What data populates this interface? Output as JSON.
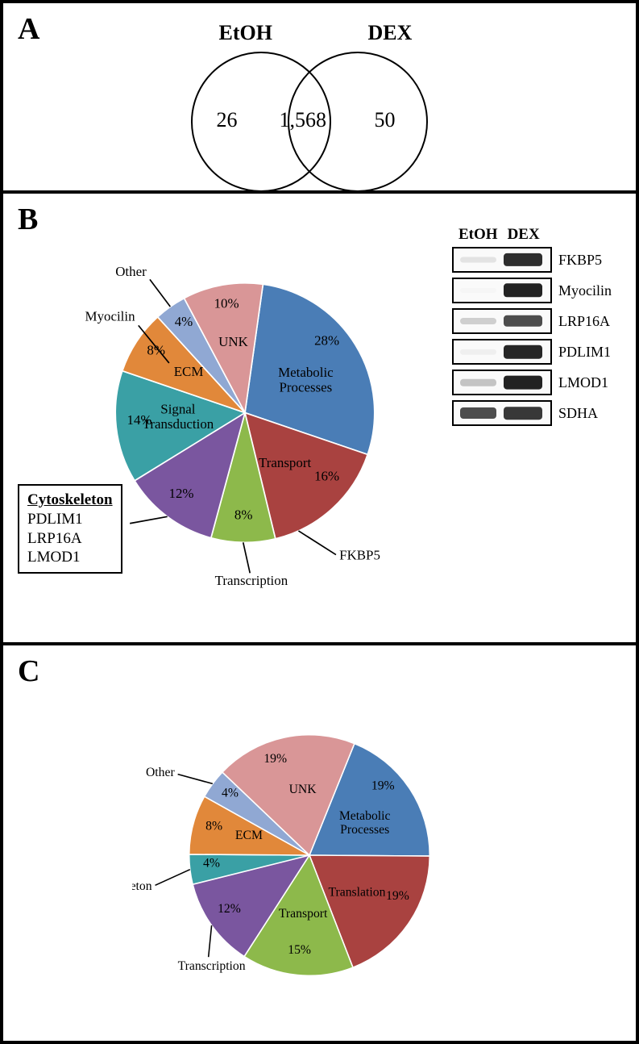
{
  "panelA": {
    "label": "A",
    "leftSetLabel": "EtOH",
    "rightSetLabel": "DEX",
    "leftOnly": "26",
    "intersection": "1,568",
    "rightOnly": "50"
  },
  "panelB": {
    "label": "B",
    "pie": {
      "type": "pie",
      "radius": 190,
      "slices": [
        {
          "key": "metabolic",
          "label": "Metabolic\nProcesses",
          "pct": 28,
          "color": "#4a7db6",
          "textInside": true
        },
        {
          "key": "transport",
          "label": "Transport",
          "pct": 16,
          "color": "#a94240",
          "textInside": true
        },
        {
          "key": "transcription",
          "label": "Transcription",
          "pct": 8,
          "color": "#8db94b",
          "textInside": false
        },
        {
          "key": "cytoskeleton",
          "label": "",
          "pct": 12,
          "color": "#7a569f",
          "textInside": true
        },
        {
          "key": "signal",
          "label": "Signal\nTransduction",
          "pct": 14,
          "color": "#3aa0a5",
          "textInside": true
        },
        {
          "key": "ecm",
          "label": "ECM",
          "pct": 8,
          "color": "#e1883a",
          "textInside": true
        },
        {
          "key": "other",
          "label": "Other",
          "pct": 4,
          "color": "#90a8d3",
          "textInside": false
        },
        {
          "key": "unk",
          "label": "UNK",
          "pct": 10,
          "color": "#d99697",
          "textInside": true
        }
      ],
      "callouts": {
        "transport_extra": "FKBP5",
        "transcription": "Transcription",
        "ecm_extra": "Myocilin",
        "other": "Other"
      },
      "pctSuffix": "%",
      "label_fontsize": 20,
      "pct_fontsize": 20
    },
    "legend": {
      "title": "Cytoskeleton",
      "items": [
        "PDLIM1",
        "LRP16A",
        "LMOD1"
      ]
    },
    "blots": {
      "colHeaders": [
        "EtOH",
        "DEX"
      ],
      "rows": [
        {
          "name": "FKBP5",
          "etoh_intensity": 0.1,
          "dex_intensity": 0.85
        },
        {
          "name": "Myocilin",
          "etoh_intensity": 0.02,
          "dex_intensity": 0.95
        },
        {
          "name": "LRP16A",
          "etoh_intensity": 0.2,
          "dex_intensity": 0.7
        },
        {
          "name": "PDLIM1",
          "etoh_intensity": 0.05,
          "dex_intensity": 0.88
        },
        {
          "name": "LMOD1",
          "etoh_intensity": 0.25,
          "dex_intensity": 0.9
        },
        {
          "name": "SDHA",
          "etoh_intensity": 0.8,
          "dex_intensity": 0.8
        }
      ]
    }
  },
  "panelC": {
    "label": "C",
    "pie": {
      "type": "pie",
      "radius": 190,
      "slices": [
        {
          "key": "metabolic",
          "label": "Metabolic\nProcesses",
          "pct": 19,
          "color": "#4a7db6",
          "textInside": true
        },
        {
          "key": "translation",
          "label": "Translation",
          "pct": 19,
          "color": "#a94240",
          "textInside": true
        },
        {
          "key": "transport",
          "label": "Transport",
          "pct": 15,
          "color": "#8db94b",
          "textInside": true
        },
        {
          "key": "transcription",
          "label": "Transcription",
          "pct": 12,
          "color": "#7a569f",
          "textInside": false
        },
        {
          "key": "cytoskeleton",
          "label": "Cytoskeleton",
          "pct": 4,
          "color": "#3aa0a5",
          "textInside": false
        },
        {
          "key": "ecm",
          "label": "ECM",
          "pct": 8,
          "color": "#e1883a",
          "textInside": true
        },
        {
          "key": "other",
          "label": "Other",
          "pct": 4,
          "color": "#90a8d3",
          "textInside": false
        },
        {
          "key": "unk",
          "label": "UNK",
          "pct": 19,
          "color": "#d99697",
          "textInside": true
        }
      ],
      "pctSuffix": "%",
      "label_fontsize": 20,
      "pct_fontsize": 20
    }
  }
}
